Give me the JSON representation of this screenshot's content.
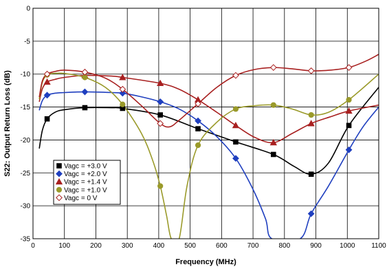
{
  "chart_data": {
    "type": "line",
    "title": "",
    "xlabel": "Frequency (MHz)",
    "ylabel": "S22: Output Return Loss (dB)",
    "xlim": [
      0,
      1100
    ],
    "ylim": [
      -35,
      0
    ],
    "xticks": [
      0,
      100,
      200,
      300,
      400,
      500,
      600,
      700,
      800,
      900,
      1000,
      1100
    ],
    "yticks": [
      0,
      -5,
      -10,
      -15,
      -20,
      -25,
      -30,
      -35
    ],
    "grid": true,
    "legend_position": "bottom-left",
    "series": [
      {
        "name": "Vagc = +3.0 V",
        "color": "#000000",
        "marker": "square",
        "x": [
          20,
          30,
          45,
          70,
          100,
          165,
          250,
          285,
          405,
          525,
          645,
          765,
          830,
          885,
          940,
          1005,
          1100
        ],
        "y": [
          -21.3,
          -18.5,
          -16.8,
          -15.8,
          -15.4,
          -15.1,
          -15.1,
          -15.2,
          -16.2,
          -18.3,
          -20.3,
          -22.2,
          -24.0,
          -25.2,
          -23.5,
          -17.8,
          -12.0
        ],
        "markers_x": [
          45,
          165,
          285,
          405,
          525,
          645,
          765,
          885,
          1005
        ],
        "markers_y": [
          -16.8,
          -15.1,
          -15.2,
          -16.2,
          -18.3,
          -20.3,
          -22.2,
          -25.2,
          -17.8
        ]
      },
      {
        "name": "Vagc = +2.0 V",
        "color": "#1F3FBF",
        "marker": "diamond",
        "x": [
          20,
          30,
          45,
          70,
          100,
          165,
          250,
          285,
          340,
          405,
          465,
          525,
          585,
          645,
          700,
          740,
          760,
          850,
          885,
          940,
          1005,
          1050,
          1100
        ],
        "y": [
          -15.5,
          -14.0,
          -13.2,
          -12.9,
          -12.8,
          -12.7,
          -12.8,
          -12.9,
          -13.4,
          -14.2,
          -15.3,
          -17.1,
          -19.5,
          -22.8,
          -27.5,
          -32.0,
          -35.0,
          -35.0,
          -31.2,
          -27.0,
          -21.5,
          -18.0,
          -15.0
        ],
        "markers_x": [
          45,
          165,
          285,
          405,
          525,
          645,
          885,
          1005
        ],
        "markers_y": [
          -13.2,
          -12.7,
          -12.9,
          -14.2,
          -17.1,
          -22.8,
          -31.2,
          -21.5
        ]
      },
      {
        "name": "Vagc = +1.4 V",
        "color": "#A82020",
        "marker": "triangle",
        "x": [
          20,
          30,
          45,
          70,
          100,
          165,
          250,
          285,
          405,
          465,
          525,
          585,
          645,
          705,
          765,
          825,
          885,
          945,
          1005,
          1100
        ],
        "y": [
          -14.2,
          -12.2,
          -11.2,
          -10.8,
          -10.5,
          -10.2,
          -10.3,
          -10.5,
          -11.4,
          -12.3,
          -13.9,
          -15.8,
          -17.8,
          -19.6,
          -20.4,
          -19.0,
          -17.5,
          -16.5,
          -15.6,
          -14.7
        ],
        "markers_x": [
          45,
          165,
          285,
          405,
          525,
          645,
          765,
          885,
          1005
        ],
        "markers_y": [
          -11.2,
          -10.2,
          -10.5,
          -11.4,
          -13.9,
          -17.8,
          -20.4,
          -17.5,
          -15.6
        ]
      },
      {
        "name": "Vagc = +1.0 V",
        "color": "#9A9A2A",
        "marker": "circle",
        "x": [
          20,
          30,
          45,
          65,
          100,
          165,
          230,
          285,
          345,
          380,
          405,
          425,
          440,
          465,
          490,
          525,
          585,
          645,
          705,
          765,
          825,
          885,
          940,
          1005,
          1100
        ],
        "y": [
          -13.8,
          -11.2,
          -10.1,
          -9.9,
          -9.9,
          -10.5,
          -12.0,
          -14.6,
          -19.0,
          -23.0,
          -27.0,
          -31.5,
          -35.0,
          -35.0,
          -27.0,
          -20.8,
          -17.3,
          -15.3,
          -14.8,
          -14.7,
          -15.3,
          -16.2,
          -15.8,
          -13.9,
          -10.0
        ],
        "markers_x": [
          45,
          165,
          285,
          405,
          525,
          645,
          765,
          885,
          1005
        ],
        "markers_y": [
          -10.1,
          -10.5,
          -14.6,
          -27.0,
          -20.8,
          -15.3,
          -14.7,
          -16.2,
          -13.9
        ]
      },
      {
        "name": "Vagc = 0 V",
        "color": "#A82020",
        "marker": "diamond-open",
        "x": [
          20,
          30,
          45,
          70,
          100,
          165,
          230,
          285,
          345,
          405,
          435,
          465,
          525,
          585,
          645,
          705,
          765,
          825,
          885,
          945,
          1005,
          1060,
          1100
        ],
        "y": [
          -13.5,
          -11.0,
          -10.0,
          -9.6,
          -9.4,
          -9.7,
          -10.6,
          -12.3,
          -14.8,
          -17.5,
          -18.0,
          -17.0,
          -14.5,
          -12.0,
          -10.2,
          -9.3,
          -9.0,
          -9.2,
          -9.5,
          -9.4,
          -9.0,
          -8.0,
          -7.0
        ],
        "markers_x": [
          45,
          165,
          285,
          405,
          525,
          645,
          765,
          885,
          1005
        ],
        "markers_y": [
          -10.0,
          -9.7,
          -12.3,
          -17.5,
          -14.5,
          -10.2,
          -9.0,
          -9.5,
          -9.0
        ]
      }
    ]
  }
}
